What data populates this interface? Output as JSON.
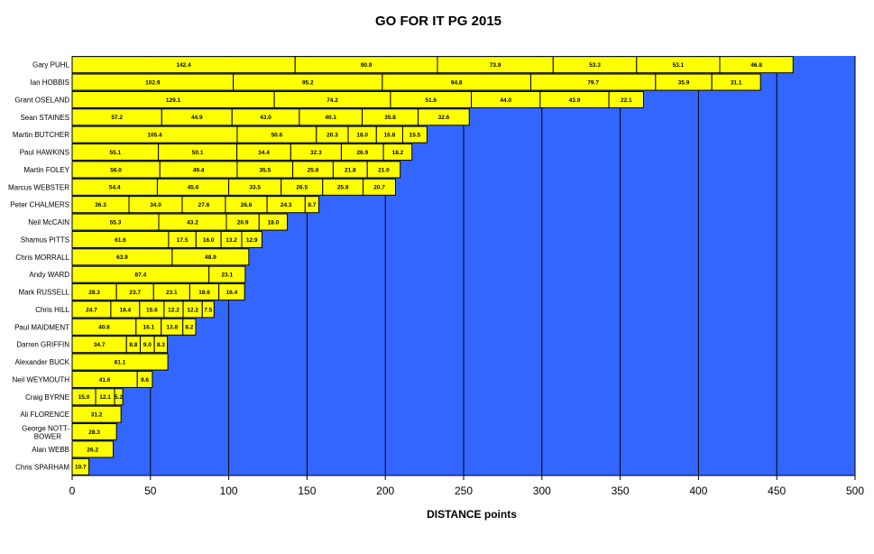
{
  "chart_data": {
    "type": "bar",
    "orientation": "horizontal",
    "stacked": true,
    "title": "GO FOR IT PG 2015",
    "xlabel": "DISTANCE points",
    "ylabel": "",
    "xlim": [
      0,
      500
    ],
    "xticks": [
      0,
      50,
      100,
      150,
      200,
      250,
      300,
      350,
      400,
      450,
      500
    ],
    "grid": "vertical",
    "colors": {
      "plot_bg": "#3366FF",
      "bar_fill": "#FFFF00",
      "bar_stroke": "#000000",
      "grid": "#000000"
    },
    "categories": [
      {
        "name": "Gary PUHL",
        "values": [
          142.4,
          90.9,
          73.9,
          53.3,
          53.1,
          46.8
        ]
      },
      {
        "name": "Ian HOBBIS",
        "values": [
          102.9,
          95.2,
          94.8,
          79.7,
          35.9,
          31.1
        ]
      },
      {
        "name": "Grant OSELAND",
        "values": [
          129.1,
          74.2,
          51.6,
          44.0,
          43.9,
          22.1
        ]
      },
      {
        "name": "Sean STAINES",
        "values": [
          57.2,
          44.9,
          43.0,
          40.1,
          35.8,
          32.6
        ]
      },
      {
        "name": "Martin BUTCHER",
        "values": [
          105.4,
          50.6,
          20.3,
          18.0,
          16.8,
          15.5
        ]
      },
      {
        "name": "Paul HAWKINS",
        "values": [
          55.1,
          50.1,
          34.4,
          32.3,
          26.9,
          18.2
        ]
      },
      {
        "name": "Martin FOLEY",
        "values": [
          56.0,
          49.4,
          35.5,
          25.8,
          21.8,
          21.0
        ]
      },
      {
        "name": "Marcus WEBSTER",
        "values": [
          54.4,
          45.6,
          33.5,
          26.5,
          25.8,
          20.7
        ]
      },
      {
        "name": "Peter CHALMERS",
        "values": [
          36.3,
          34.0,
          27.6,
          26.6,
          24.3,
          8.7
        ]
      },
      {
        "name": "Neil McCAIN",
        "values": [
          55.3,
          43.2,
          20.9,
          18.0
        ]
      },
      {
        "name": "Shamus PITTS",
        "values": [
          61.6,
          17.5,
          16.0,
          13.2,
          12.9
        ]
      },
      {
        "name": "Chris MORRALL",
        "values": [
          63.9,
          48.9
        ]
      },
      {
        "name": "Andy WARD",
        "values": [
          87.4,
          23.1
        ]
      },
      {
        "name": "Mark RUSSELL",
        "values": [
          28.3,
          23.7,
          23.1,
          18.6,
          16.4
        ]
      },
      {
        "name": "Chris HILL",
        "values": [
          24.7,
          18.4,
          15.6,
          12.2,
          12.2,
          7.5
        ]
      },
      {
        "name": "Paul MAIDMENT",
        "values": [
          40.8,
          16.1,
          13.8,
          8.2
        ]
      },
      {
        "name": "Darren GRIFFIN",
        "values": [
          34.7,
          8.8,
          9.0,
          8.3
        ]
      },
      {
        "name": "Alexander BUCK",
        "values": [
          61.1
        ]
      },
      {
        "name": "Neil WEYMOUTH",
        "values": [
          41.6,
          9.6
        ]
      },
      {
        "name": "Craig BYRNE",
        "values": [
          15.0,
          12.1,
          5.2
        ]
      },
      {
        "name": "Ali FLORENCE",
        "values": [
          31.2
        ]
      },
      {
        "name": "George NOTT-BOWER",
        "values": [
          28.3
        ]
      },
      {
        "name": "Alan WEBB",
        "values": [
          26.2
        ]
      },
      {
        "name": "Chris SPARHAM",
        "values": [
          10.7
        ]
      }
    ]
  }
}
